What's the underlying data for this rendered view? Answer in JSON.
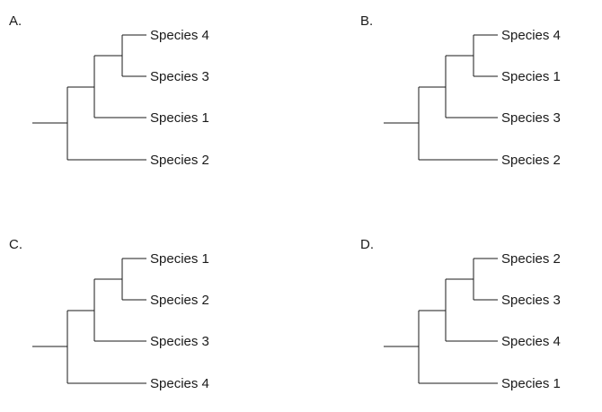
{
  "panels": [
    {
      "label": "A.",
      "leaves": [
        "Species 4",
        "Species 3",
        "Species 1",
        "Species 2"
      ]
    },
    {
      "label": "B.",
      "leaves": [
        "Species 4",
        "Species 1",
        "Species 3",
        "Species 2"
      ]
    },
    {
      "label": "C.",
      "leaves": [
        "Species 1",
        "Species 2",
        "Species 3",
        "Species 4"
      ]
    },
    {
      "label": "D.",
      "leaves": [
        "Species 2",
        "Species 3",
        "Species 4",
        "Species 1"
      ]
    }
  ]
}
